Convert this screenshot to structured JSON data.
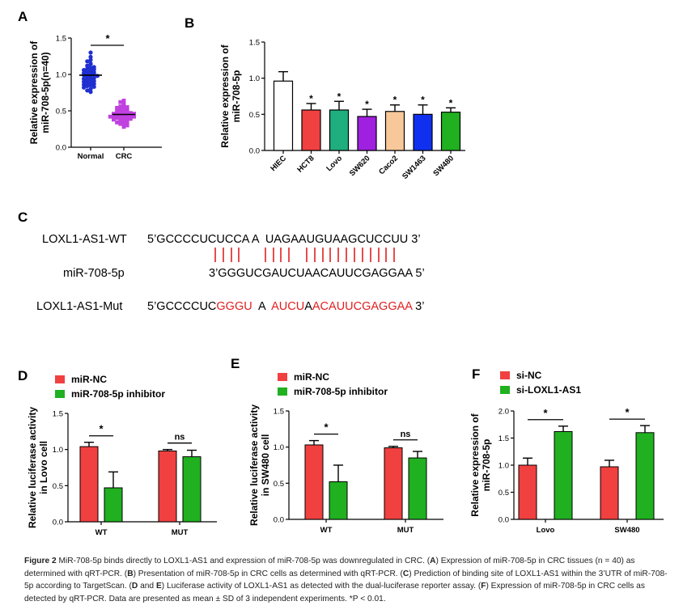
{
  "panels": {
    "A": {
      "label": "A",
      "chart_data": {
        "type": "scatter",
        "ylabel": "Relative expression of miR-708-5p(n=40)",
        "ylabel_lines": [
          "Relative expression of",
          "miR-708-5p(n=40)"
        ],
        "categories": [
          "Normal",
          "CRC"
        ],
        "ylim": [
          0,
          1.5
        ],
        "yticks": [
          "0.0",
          "0.5",
          "1.0",
          "1.5"
        ],
        "yticks_values": [
          0,
          0.5,
          1.0,
          1.5
        ],
        "means": [
          0.99,
          0.45
        ],
        "colors": [
          "#1f2fd0",
          "#c040e0"
        ],
        "significance": "*",
        "points": {
          "Normal": [
            1.3,
            1.24,
            1.2,
            1.18,
            1.15,
            1.14,
            1.12,
            1.1,
            1.09,
            1.08,
            1.07,
            1.06,
            1.05,
            1.04,
            1.03,
            1.02,
            1.01,
            1.0,
            1.0,
            0.99,
            0.98,
            0.97,
            0.96,
            0.95,
            0.94,
            0.93,
            0.92,
            0.91,
            0.9,
            0.89,
            0.88,
            0.87,
            0.86,
            0.85,
            0.84,
            0.83,
            0.82,
            0.8,
            0.78,
            0.76
          ],
          "CRC": [
            0.64,
            0.62,
            0.6,
            0.58,
            0.56,
            0.55,
            0.54,
            0.53,
            0.52,
            0.51,
            0.5,
            0.49,
            0.48,
            0.48,
            0.47,
            0.47,
            0.46,
            0.46,
            0.45,
            0.45,
            0.44,
            0.44,
            0.43,
            0.43,
            0.42,
            0.42,
            0.41,
            0.41,
            0.4,
            0.4,
            0.39,
            0.38,
            0.37,
            0.36,
            0.35,
            0.34,
            0.33,
            0.32,
            0.3,
            0.28
          ]
        }
      }
    },
    "B": {
      "label": "B",
      "chart_data": {
        "type": "bar",
        "ylabel": "Relative expression of miR-708-5p",
        "ylabel_lines": [
          "Relative expression of",
          "miR-708-5p"
        ],
        "categories": [
          "HIEC",
          "HCT8",
          "Lovo",
          "SW620",
          "Caco2",
          "SW1463",
          "SW480"
        ],
        "values": [
          0.96,
          0.56,
          0.56,
          0.47,
          0.54,
          0.5,
          0.53
        ],
        "errors": [
          0.13,
          0.09,
          0.12,
          0.1,
          0.09,
          0.13,
          0.06
        ],
        "colors": [
          "#ffffff",
          "#f04040",
          "#1fae7e",
          "#a020e0",
          "#f8c89a",
          "#1030f0",
          "#20b020"
        ],
        "marks": [
          "",
          "*",
          "*",
          "*",
          "*",
          "*",
          "*"
        ],
        "ylim": [
          0,
          1.5
        ],
        "yticks": [
          "0.0",
          "0.5",
          "1.0",
          "1.5"
        ],
        "yticks_values": [
          0,
          0.5,
          1.0,
          1.5
        ]
      }
    },
    "C": {
      "label": "C",
      "rows": [
        {
          "name": "LOXL1-AS1-WT",
          "seq": "5’GCCCCUCUCCA A  UAGAAUGUAAGCUCCUU 3’"
        },
        {
          "name": "miR-708-5p",
          "seq": "3’GGGUCGAUCUAACAUUCGAGGAA 5’"
        },
        {
          "name": "LOXL1-AS1-Mut",
          "seq_parts": [
            "5’GCCCCUC",
            "GGGU",
            "  A  ",
            "AUCU",
            "A",
            "ACAUUCGAGGAA",
            " 3’"
          ]
        }
      ]
    },
    "D": {
      "label": "D",
      "chart_data": {
        "type": "bar",
        "ylabel_lines": [
          "Relative  luciferase activity",
          "in Lovo cell"
        ],
        "categories": [
          "WT",
          "MUT"
        ],
        "series": [
          {
            "name": "miR-NC",
            "values": [
              1.04,
              0.98
            ],
            "errors": [
              0.06,
              0.02
            ],
            "color": "#f04040"
          },
          {
            "name": "miR-708-5p inhibitor",
            "values": [
              0.47,
              0.9
            ],
            "errors": [
              0.22,
              0.09
            ],
            "color": "#20b020"
          }
        ],
        "significance": [
          "*",
          "ns"
        ],
        "ylim": [
          0,
          1.5
        ],
        "yticks": [
          "0.0",
          "0.5",
          "1.0",
          "1.5"
        ],
        "yticks_values": [
          0,
          0.5,
          1.0,
          1.5
        ]
      }
    },
    "E": {
      "label": "E",
      "chart_data": {
        "type": "bar",
        "ylabel_lines": [
          "Relative  luciferase activity",
          "in SW480 cell"
        ],
        "categories": [
          "WT",
          "MUT"
        ],
        "series": [
          {
            "name": "miR-NC",
            "values": [
              1.03,
              0.99
            ],
            "errors": [
              0.06,
              0.02
            ],
            "color": "#f04040"
          },
          {
            "name": "miR-708-5p inhibitor",
            "values": [
              0.52,
              0.85
            ],
            "errors": [
              0.23,
              0.09
            ],
            "color": "#20b020"
          }
        ],
        "significance": [
          "*",
          "ns"
        ],
        "ylim": [
          0,
          1.5
        ],
        "yticks": [
          "0.0",
          "0.5",
          "1.0",
          "1.5"
        ],
        "yticks_values": [
          0,
          0.5,
          1.0,
          1.5
        ]
      }
    },
    "F": {
      "label": "F",
      "chart_data": {
        "type": "bar",
        "ylabel_lines": [
          "Relative expression of",
          "miR-708-5p"
        ],
        "categories": [
          "Lovo",
          "SW480"
        ],
        "series": [
          {
            "name": "si-NC",
            "values": [
              1.0,
              0.97
            ],
            "errors": [
              0.13,
              0.12
            ],
            "color": "#f04040"
          },
          {
            "name": "si-LOXL1-AS1",
            "values": [
              1.62,
              1.6
            ],
            "errors": [
              0.1,
              0.13
            ],
            "color": "#20b020"
          }
        ],
        "significance": [
          "*",
          "*"
        ],
        "ylim": [
          0,
          2.0
        ],
        "yticks": [
          "0.0",
          "0.5",
          "1.0",
          "1.5",
          "2.0"
        ],
        "yticks_values": [
          0,
          0.5,
          1.0,
          1.5,
          2.0
        ]
      }
    }
  },
  "caption": {
    "lead": "Figure 2",
    "text_parts": [
      {
        "t": " MiR-708-5p binds directly to LOXL1-AS1 and expression of miR-708-5p was downregulated in CRC. ("
      },
      {
        "b": "A"
      },
      {
        "t": ") Expression of miR-708-5p in CRC tissues (n = 40) as determined with qRT-PCR. ("
      },
      {
        "b": "B"
      },
      {
        "t": ") Presentation of miR-708-5p in CRC cells as determined with qRT-PCR. ("
      },
      {
        "b": "C"
      },
      {
        "t": ") Prediction of binding site of LOXL1-AS1 within the 3’UTR of miR-708-5p according to TargetScan. ("
      },
      {
        "b": "D"
      },
      {
        "t": " and "
      },
      {
        "b": "E"
      },
      {
        "t": ") Luciferase activity of LOXL1-AS1 as detected with the dual-luciferase reporter assay. ("
      },
      {
        "b": "F"
      },
      {
        "t": ") Expression of miR-708-5p in CRC cells as detected by qRT-PCR. Data are presented as mean ± SD of 3 independent experiments. *P < 0.01."
      }
    ]
  }
}
